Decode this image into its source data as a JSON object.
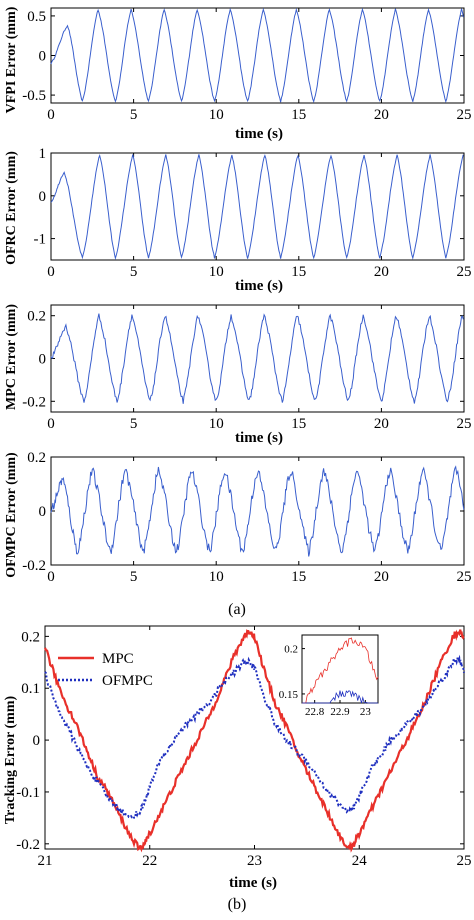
{
  "figure": {
    "caption_a": "(a)",
    "caption_b": "(b)"
  },
  "chart_data": [
    {
      "type": "line",
      "panel": "a1",
      "ylabel": "VFPI Error (mm)",
      "xlabel": "time (s)",
      "xlim": [
        0,
        25
      ],
      "ylim": [
        -0.6,
        0.6
      ],
      "xticks": [
        0,
        5,
        10,
        15,
        20,
        25
      ],
      "yticks": [
        -0.5,
        0,
        0.5
      ],
      "ytick_labels": [
        "-0.5",
        "0",
        "0.5"
      ],
      "series": [
        {
          "color": "#3a5fcd",
          "pattern": {
            "t0": 0.0,
            "y0": -0.1,
            "first_peak_t": 1.0,
            "first_peak": 0.38,
            "first_trough_t": 1.9,
            "period": 2.0,
            "peak": 0.58,
            "trough": -0.58,
            "peak_phase": 0.95,
            "noise": 0.01
          }
        }
      ]
    },
    {
      "type": "line",
      "panel": "a2",
      "ylabel": "OFRC Error (mm)",
      "xlabel": "time (s)",
      "xlim": [
        0,
        25
      ],
      "ylim": [
        -1.5,
        1.0
      ],
      "xticks": [
        0,
        5,
        10,
        15,
        20,
        25
      ],
      "yticks": [
        -1,
        0,
        1
      ],
      "ytick_labels": [
        "-1",
        "0",
        "1"
      ],
      "series": [
        {
          "color": "#3a5fcd",
          "pattern": {
            "t0": 0.0,
            "y0": -0.15,
            "first_peak_t": 0.8,
            "first_peak": 0.55,
            "first_trough_t": 1.9,
            "period": 2.0,
            "peak": 0.95,
            "trough": -1.45,
            "peak_phase": 1.05,
            "noise": 0.02
          }
        }
      ]
    },
    {
      "type": "line",
      "panel": "a3",
      "ylabel": "MPC Error (mm)",
      "xlabel": "time (s)",
      "xlim": [
        0,
        25
      ],
      "ylim": [
        -0.25,
        0.25
      ],
      "xticks": [
        0,
        5,
        10,
        15,
        20,
        25
      ],
      "yticks": [
        -0.2,
        0,
        0.2
      ],
      "ytick_labels": [
        "-0.2",
        "0",
        "0.2"
      ],
      "series": [
        {
          "color": "#3a5fcd",
          "pattern": {
            "t0": 0.0,
            "y0": 0.0,
            "first_peak_t": 0.9,
            "first_peak": 0.15,
            "first_trough_t": 2.0,
            "period": 2.0,
            "peak": 0.2,
            "trough": -0.2,
            "peak_phase": 0.9,
            "noise": 0.012
          }
        }
      ]
    },
    {
      "type": "line",
      "panel": "a4",
      "ylabel": "OFMPC Error (mm)",
      "xlabel": "time (s)",
      "xlim": [
        0,
        25
      ],
      "ylim": [
        -0.2,
        0.2
      ],
      "xticks": [
        0,
        5,
        10,
        15,
        20,
        25
      ],
      "yticks": [
        -0.2,
        0,
        0.2
      ],
      "ytick_labels": [
        "-0.2",
        "0",
        "0.2"
      ],
      "series": [
        {
          "color": "#3a5fcd",
          "pattern": {
            "t0": 0.0,
            "y0": 0.0,
            "first_peak_t": 0.7,
            "first_peak": 0.12,
            "first_trough_t": 1.6,
            "period": 2.0,
            "peak": 0.15,
            "trough": -0.15,
            "peak_phase": 0.9,
            "noise": 0.02
          }
        }
      ]
    },
    {
      "type": "line",
      "panel": "b",
      "ylabel": "Tracking Error (mm)",
      "xlabel": "time (s)",
      "xlim": [
        21,
        25
      ],
      "ylim": [
        -0.21,
        0.22
      ],
      "xticks": [
        21,
        22,
        23,
        24,
        25
      ],
      "yticks": [
        -0.2,
        -0.1,
        0,
        0.1,
        0.2
      ],
      "ytick_labels": [
        "-0.2",
        "-0.1",
        "0",
        "0.1",
        "0.2"
      ],
      "legend": {
        "position": "top-left"
      },
      "series": [
        {
          "name": "MPC",
          "color": "#e8302a",
          "style": "solid",
          "x": [
            21.0,
            21.1,
            21.2,
            21.3,
            21.4,
            21.5,
            21.6,
            21.7,
            21.8,
            21.9,
            21.95,
            22.0,
            22.1,
            22.2,
            22.3,
            22.4,
            22.5,
            22.6,
            22.7,
            22.8,
            22.9,
            22.95,
            23.0,
            23.1,
            23.2,
            23.3,
            23.4,
            23.5,
            23.6,
            23.7,
            23.8,
            23.9,
            23.95,
            24.0,
            24.1,
            24.2,
            24.3,
            24.4,
            24.5,
            24.6,
            24.7,
            24.8,
            24.9,
            24.95,
            25.0
          ],
          "y": [
            0.18,
            0.12,
            0.07,
            0.03,
            -0.02,
            -0.07,
            -0.1,
            -0.14,
            -0.18,
            -0.21,
            -0.2,
            -0.18,
            -0.14,
            -0.1,
            -0.06,
            -0.02,
            0.02,
            0.06,
            0.11,
            0.16,
            0.2,
            0.21,
            0.2,
            0.13,
            0.07,
            0.03,
            -0.02,
            -0.06,
            -0.1,
            -0.14,
            -0.18,
            -0.21,
            -0.2,
            -0.18,
            -0.14,
            -0.1,
            -0.06,
            -0.02,
            0.02,
            0.06,
            0.11,
            0.16,
            0.2,
            0.21,
            0.2
          ]
        },
        {
          "name": "OFMPC",
          "color": "#1f2fbf",
          "style": "dotted",
          "x": [
            21.0,
            21.1,
            21.2,
            21.3,
            21.4,
            21.5,
            21.6,
            21.7,
            21.8,
            21.9,
            21.95,
            22.0,
            22.1,
            22.2,
            22.3,
            22.4,
            22.5,
            22.6,
            22.7,
            22.8,
            22.9,
            22.95,
            23.0,
            23.1,
            23.2,
            23.3,
            23.4,
            23.5,
            23.6,
            23.7,
            23.8,
            23.9,
            23.95,
            24.0,
            24.1,
            24.2,
            24.3,
            24.4,
            24.5,
            24.6,
            24.7,
            24.8,
            24.9,
            24.95,
            25.0
          ],
          "y": [
            0.13,
            0.07,
            0.03,
            -0.01,
            -0.05,
            -0.08,
            -0.11,
            -0.13,
            -0.15,
            -0.14,
            -0.12,
            -0.09,
            -0.04,
            -0.01,
            0.02,
            0.04,
            0.06,
            0.08,
            0.11,
            0.13,
            0.15,
            0.15,
            0.14,
            0.08,
            0.03,
            0.0,
            -0.02,
            -0.04,
            -0.07,
            -0.1,
            -0.12,
            -0.14,
            -0.13,
            -0.11,
            -0.06,
            -0.03,
            0.0,
            0.02,
            0.04,
            0.06,
            0.09,
            0.12,
            0.15,
            0.16,
            0.13
          ]
        }
      ],
      "inset": {
        "xlim": [
          22.75,
          23.05
        ],
        "ylim": [
          0.14,
          0.215
        ],
        "xticks": [
          22.8,
          22.9,
          23
        ],
        "xtick_labels": [
          "22.8",
          "22.9",
          "23"
        ],
        "yticks": [
          0.15,
          0.2
        ],
        "ytick_labels": [
          "0.15",
          "0.2"
        ]
      }
    }
  ]
}
